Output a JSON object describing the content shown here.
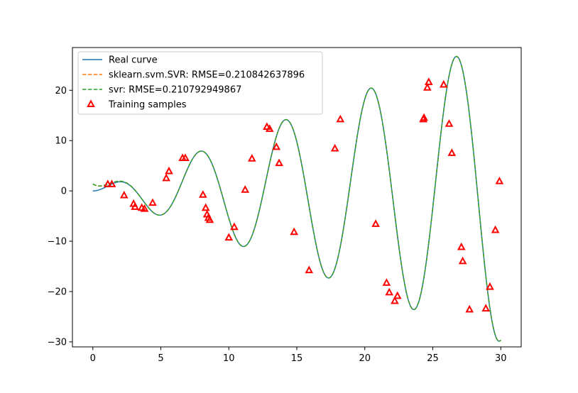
{
  "chart_data": {
    "type": "line",
    "title": "",
    "xlabel": "",
    "ylabel": "",
    "xlim": [
      -1.5,
      31.5
    ],
    "ylim": [
      -31,
      28.5
    ],
    "xticks": [
      0,
      5,
      10,
      15,
      20,
      25,
      30
    ],
    "yticks": [
      -30,
      -20,
      -10,
      0,
      10,
      20
    ],
    "grid": false,
    "legend_position": "top-left",
    "series": [
      {
        "name": "Real curve",
        "style": "solid",
        "color": "#1f77b4",
        "function": "x*sin(x)"
      },
      {
        "name": "sklearn.svm.SVR: RMSE=0.210842637896",
        "style": "dashed",
        "color": "#ff7f0e"
      },
      {
        "name": "svr: RMSE=0.210792949867",
        "style": "dashed",
        "color": "#2ca02c"
      },
      {
        "name": "Training samples",
        "style": "markers",
        "marker": "triangle",
        "color": "#ff0000",
        "x": [
          1.1,
          1.4,
          2.3,
          3.0,
          3.1,
          3.6,
          3.8,
          4.4,
          5.4,
          5.6,
          6.6,
          6.8,
          8.1,
          8.3,
          8.4,
          8.5,
          8.6,
          10.0,
          10.4,
          11.2,
          11.7,
          12.8,
          13.0,
          13.5,
          13.7,
          14.8,
          15.9,
          17.8,
          18.2,
          20.8,
          21.6,
          21.8,
          22.2,
          22.4,
          24.3,
          24.35,
          24.6,
          24.7,
          25.8,
          26.2,
          26.4,
          27.1,
          27.2,
          27.7,
          28.9,
          29.2,
          29.6,
          29.9
        ],
        "y": [
          1.3,
          1.3,
          -0.9,
          -2.6,
          -3.2,
          -3.4,
          -3.6,
          -2.4,
          2.5,
          3.9,
          6.5,
          6.5,
          -0.8,
          -3.4,
          -4.7,
          -5.4,
          -5.8,
          -9.3,
          -7.2,
          0.2,
          6.4,
          12.7,
          12.3,
          8.7,
          5.5,
          -8.2,
          -15.8,
          8.4,
          14.2,
          -6.6,
          -18.3,
          -20.2,
          -21.9,
          -20.9,
          14.2,
          14.5,
          20.5,
          21.6,
          21.1,
          13.3,
          7.5,
          -11.2,
          -14.0,
          -23.6,
          -23.4,
          -19.1,
          -7.8,
          1.9
        ]
      }
    ]
  }
}
